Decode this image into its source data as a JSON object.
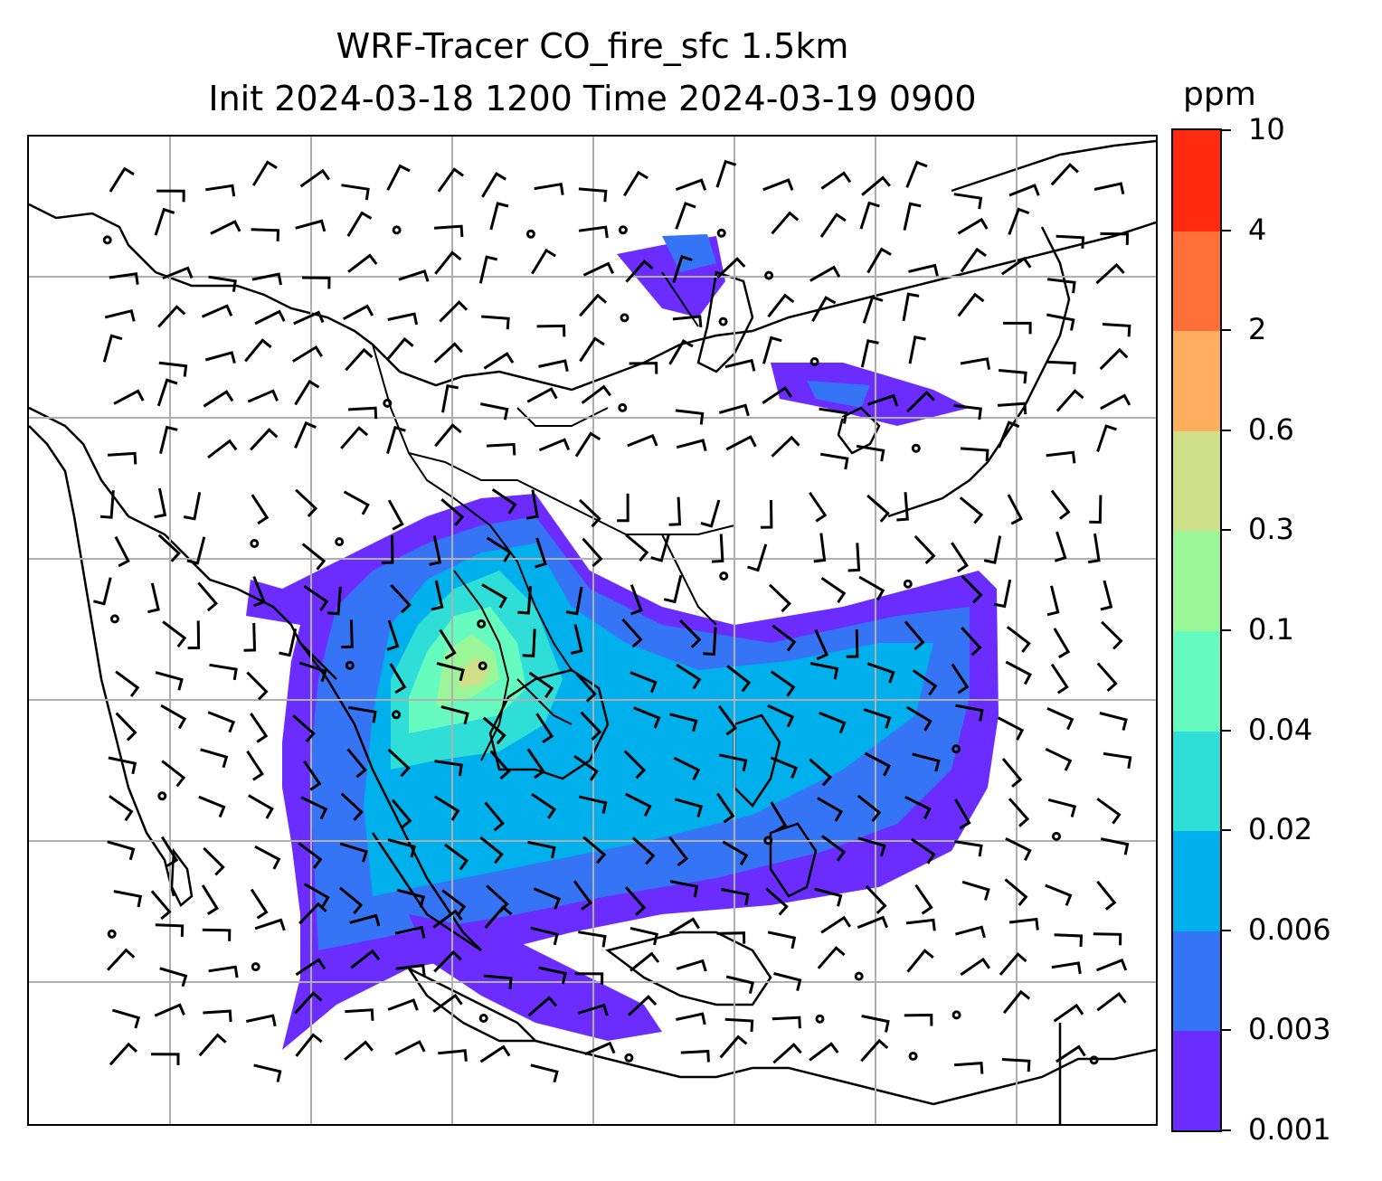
{
  "title": {
    "line1": "WRF-Tracer CO_fire_sfc 1.5km",
    "line2": "Init 2024-03-18 1200 Time 2024-03-19 0900"
  },
  "map": {
    "variable": "CO_fire_sfc",
    "gridlines": true,
    "overlay": "wind-barbs",
    "basemap": "coastlines-and-borders"
  },
  "colorbar": {
    "unit": "ppm",
    "levels": [
      "0.001",
      "0.003",
      "0.006",
      "0.02",
      "0.04",
      "0.1",
      "0.3",
      "0.6",
      "2",
      "4",
      "10"
    ],
    "colors": [
      "#6a2cff",
      "#3575f5",
      "#00b0ec",
      "#2fded6",
      "#66fcc0",
      "#9af697",
      "#d0e088",
      "#ffae60",
      "#ff7038",
      "#ff2a10"
    ]
  }
}
